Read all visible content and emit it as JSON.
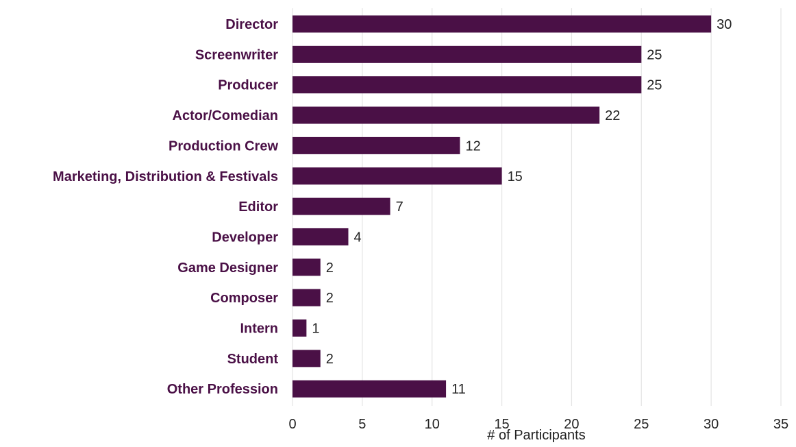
{
  "chart_data": {
    "type": "bar",
    "orientation": "horizontal",
    "categories": [
      "Director",
      "Screenwriter",
      "Producer",
      "Actor/Comedian",
      "Production Crew",
      "Marketing, Distribution & Festivals",
      "Editor",
      "Developer",
      "Game Designer",
      "Composer",
      "Intern",
      "Student",
      "Other Profession"
    ],
    "values": [
      30,
      25,
      25,
      22,
      12,
      15,
      7,
      4,
      2,
      2,
      1,
      2,
      11
    ],
    "xlabel": "# of Participants",
    "ylabel": "",
    "xlim": [
      0,
      35
    ],
    "xticks": [
      0,
      5,
      10,
      15,
      20,
      25,
      30,
      35
    ],
    "grid": "vertical",
    "legend": "none",
    "colors": {
      "bar": "#4a1046",
      "label": "#4a1046",
      "grid": "#e4e4e4",
      "value_text": "#222222"
    }
  }
}
